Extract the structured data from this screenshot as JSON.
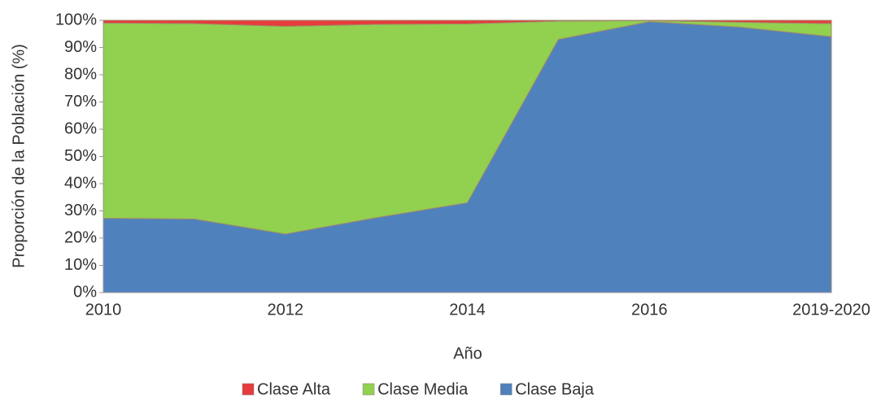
{
  "chart_data": {
    "type": "stacked_area",
    "x_label": "Año",
    "y_label": "Proporción de la Población (%)",
    "categories": [
      "2010",
      null,
      "2012",
      null,
      "2014",
      null,
      "2016",
      null,
      "2019-2020"
    ],
    "series": [
      {
        "name": "Clase Baja",
        "color": "#4f81bd",
        "values": [
          27.3,
          27,
          21.5,
          27.5,
          33,
          93,
          99.5,
          97.5,
          94
        ]
      },
      {
        "name": "Clase Media",
        "color": "#92d050",
        "values": [
          71.7,
          71.8,
          76.3,
          71,
          65.7,
          6.7,
          0.4,
          1.8,
          4.8
        ]
      },
      {
        "name": "Clase Alta",
        "color": "#e63c3c",
        "values": [
          1,
          1.2,
          2.2,
          1.5,
          1.3,
          0.3,
          0.1,
          0.7,
          1.2
        ]
      }
    ],
    "legend_order": [
      2,
      1,
      0
    ],
    "ylim": [
      0,
      100
    ],
    "yticks": [
      {
        "value": 0,
        "label": "0%"
      },
      {
        "value": 10,
        "label": "10%"
      },
      {
        "value": 20,
        "label": "20%"
      },
      {
        "value": 30,
        "label": "30%"
      },
      {
        "value": 40,
        "label": "40%"
      },
      {
        "value": 50,
        "label": "50%"
      },
      {
        "value": 60,
        "label": "60%"
      },
      {
        "value": 70,
        "label": "70%"
      },
      {
        "value": 80,
        "label": "80%"
      },
      {
        "value": 90,
        "label": "90%"
      },
      {
        "value": 100,
        "label": "100%"
      }
    ],
    "legend": "bottom"
  }
}
